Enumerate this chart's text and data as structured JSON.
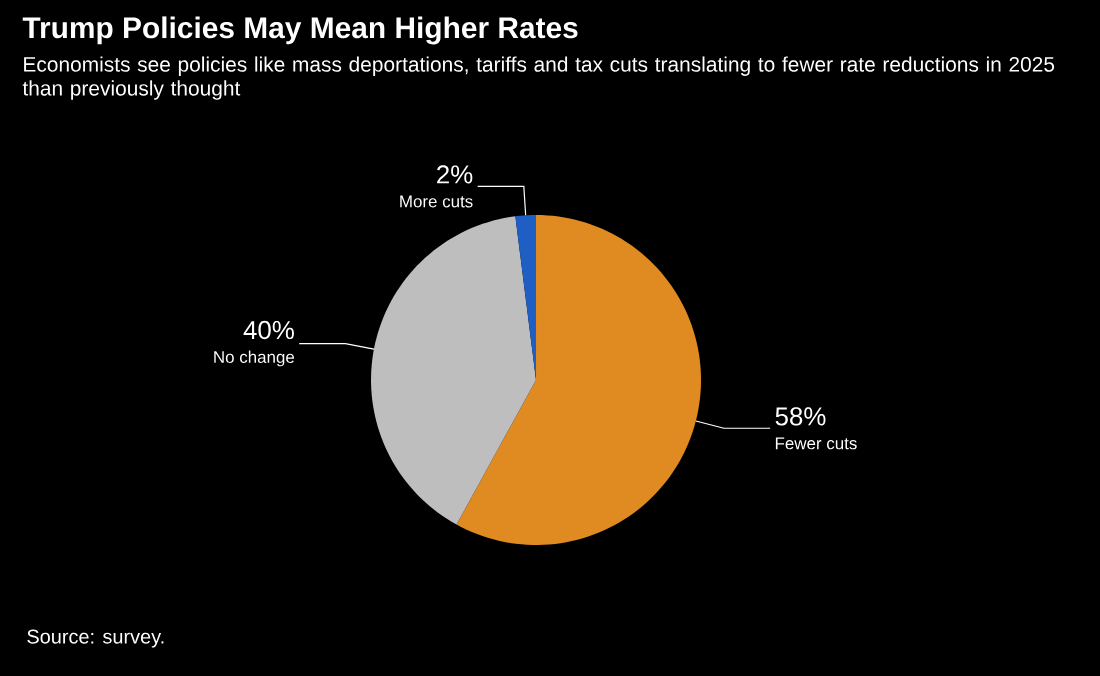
{
  "chart_data": {
    "type": "pie",
    "title": "Trump Policies May Mean Higher Rates",
    "subtitle": "Economists see policies like mass deportations, tariffs and tax cuts translating to fewer rate reductions in 2025 than previously thought",
    "categories": [
      "Fewer cuts",
      "No change",
      "More cuts"
    ],
    "values": [
      58,
      40,
      2
    ],
    "value_labels": [
      "58%",
      "40%",
      "2%"
    ],
    "colors": [
      "#e08a22",
      "#bebebe",
      "#1f5fc4"
    ],
    "annotations": [
      "Source: survey."
    ]
  }
}
